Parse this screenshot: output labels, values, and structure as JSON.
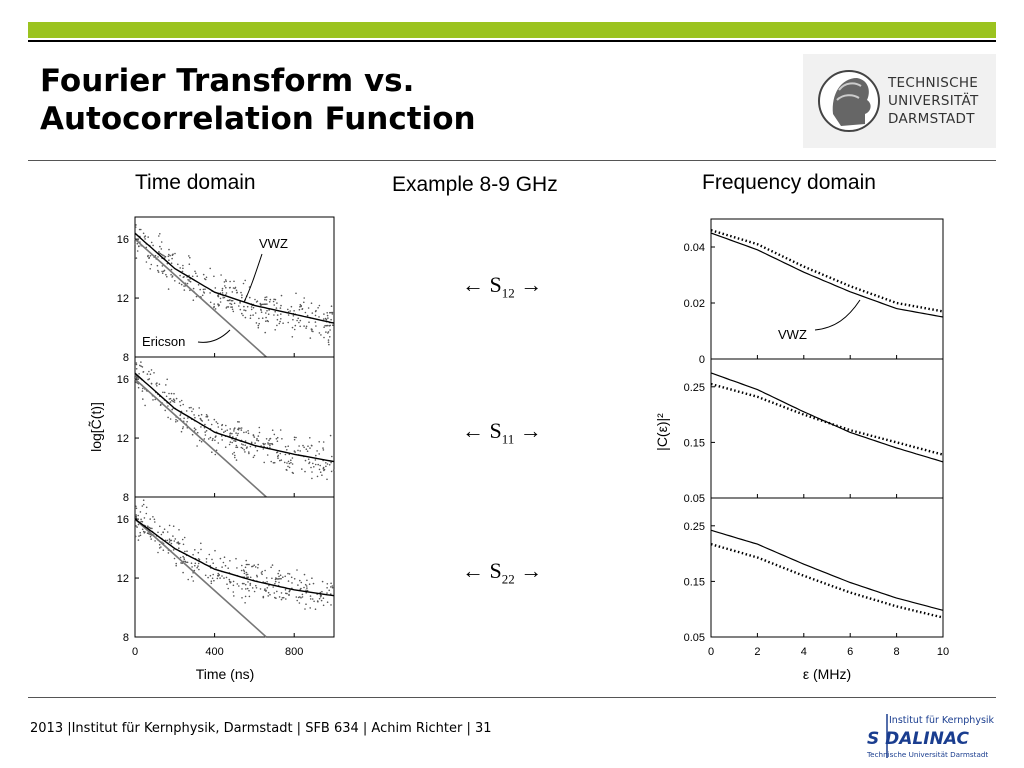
{
  "colors": {
    "accent_green": "#9bc31f",
    "curve": "#000000",
    "ericson_line": "#777777",
    "scatter": "#555555"
  },
  "slide": {
    "title_line1": "Fourier Transform vs.",
    "title_line2": "Autocorrelation Function"
  },
  "logo": {
    "line1": "TECHNISCHE",
    "line2": "UNIVERSITÄT",
    "line3": "DARMSTADT"
  },
  "headings": {
    "time": "Time domain",
    "example": "Example 8-9 GHz",
    "freq": "Frequency domain"
  },
  "arrows": [
    {
      "left": "← S",
      "sub": "12",
      "right": " →"
    },
    {
      "left": "← S",
      "sub": "11",
      "right": " →"
    },
    {
      "left": "← S",
      "sub": "22",
      "right": " →"
    }
  ],
  "footer": {
    "text": "2013 |Institut für Kernphysik, Darmstadt  |  SFB 634 | Achim Richter | 31"
  },
  "dalinac": {
    "top": "Institut für Kernphysik",
    "main": "S DALINAC",
    "bottom": "Technische Universität Darmstadt"
  },
  "chart_data": [
    {
      "type": "scatter",
      "xlabel": "Time (ns)",
      "ylabel": "log[C̃(t)]",
      "xlim": [
        0,
        1000
      ],
      "xticks": [
        0,
        400,
        800
      ],
      "panels": [
        {
          "ylim": [
            8,
            17.5
          ],
          "yticks": [
            8,
            12,
            16
          ],
          "annotations": [
            "VWZ",
            "Ericson"
          ],
          "vwz": {
            "x": [
              0,
              200,
              400,
              600,
              800,
              1000
            ],
            "y": [
              16.4,
              14.0,
              12.4,
              11.5,
              10.9,
              10.3
            ]
          },
          "ericson": {
            "x": [
              0,
              660
            ],
            "y": [
              16.0,
              8.0
            ]
          }
        },
        {
          "ylim": [
            8,
            17.5
          ],
          "yticks": [
            8,
            12,
            16
          ],
          "annotations": [],
          "vwz": {
            "x": [
              0,
              200,
              400,
              600,
              800,
              1000
            ],
            "y": [
              16.4,
              14.0,
              12.4,
              11.5,
              10.9,
              10.4
            ]
          },
          "ericson": {
            "x": [
              0,
              660
            ],
            "y": [
              16.0,
              8.0
            ]
          }
        },
        {
          "ylim": [
            8,
            17.5
          ],
          "yticks": [
            8,
            12,
            16
          ],
          "annotations": [],
          "vwz": {
            "x": [
              0,
              200,
              400,
              600,
              800,
              1000
            ],
            "y": [
              16.0,
              14.0,
              12.6,
              11.8,
              11.2,
              10.8
            ]
          },
          "ericson": {
            "x": [
              0,
              660
            ],
            "y": [
              16.0,
              8.0
            ]
          }
        }
      ]
    },
    {
      "type": "line",
      "xlabel": "ε (MHz)",
      "ylabel": "|C(ε)|²",
      "xlim": [
        0,
        10
      ],
      "xticks": [
        0,
        2,
        4,
        6,
        8,
        10
      ],
      "panels": [
        {
          "ylim": [
            0,
            0.05
          ],
          "yticks": [
            0,
            0.02,
            0.04
          ],
          "annotation": "VWZ",
          "solid": {
            "x": [
              0,
              2,
              4,
              6,
              8,
              10
            ],
            "y": [
              0.045,
              0.039,
              0.031,
              0.024,
              0.018,
              0.015
            ]
          },
          "dotted": {
            "x": [
              0,
              2,
              4,
              6,
              8,
              10
            ],
            "y": [
              0.046,
              0.041,
              0.033,
              0.026,
              0.02,
              0.017
            ]
          }
        },
        {
          "ylim": [
            0.05,
            0.3
          ],
          "yticks": [
            0.05,
            0.15,
            0.25
          ],
          "solid": {
            "x": [
              0,
              2,
              4,
              6,
              8,
              10
            ],
            "y": [
              0.275,
              0.245,
              0.205,
              0.168,
              0.14,
              0.115
            ]
          },
          "dotted": {
            "x": [
              0,
              2,
              4,
              6,
              8,
              10
            ],
            "y": [
              0.255,
              0.232,
              0.2,
              0.172,
              0.15,
              0.128
            ]
          }
        },
        {
          "ylim": [
            0.05,
            0.3
          ],
          "yticks": [
            0.05,
            0.15,
            0.25
          ],
          "solid": {
            "x": [
              0,
              2,
              4,
              6,
              8,
              10
            ],
            "y": [
              0.242,
              0.217,
              0.181,
              0.148,
              0.12,
              0.098
            ]
          },
          "dotted": {
            "x": [
              0,
              2,
              4,
              6,
              8,
              10
            ],
            "y": [
              0.217,
              0.193,
              0.16,
              0.13,
              0.105,
              0.085
            ]
          }
        }
      ]
    }
  ]
}
